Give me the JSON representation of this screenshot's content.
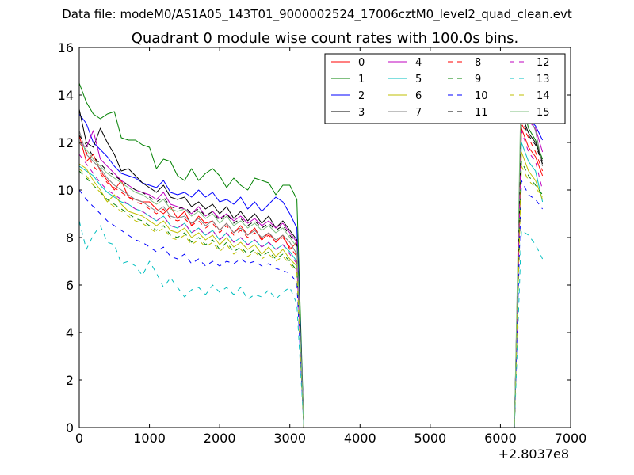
{
  "suptitle": "Data file: modeM0/AS1A05_143T01_9000002524_17006cztM0_level2_quad_clean.evt",
  "chart_data": {
    "type": "line",
    "title": "Quadrant 0 module wise count rates with 100.0s bins.",
    "xlabel": "",
    "ylabel": "",
    "x_offset_label": "+2.8037e8",
    "xlim": [
      0,
      7000
    ],
    "ylim": [
      0,
      16
    ],
    "xticks": [
      "0",
      "1000",
      "2000",
      "3000",
      "4000",
      "5000",
      "6000",
      "7000"
    ],
    "yticks": [
      "0",
      "2",
      "4",
      "6",
      "8",
      "10",
      "12",
      "14",
      "16"
    ],
    "grid": false,
    "legend": {
      "position": "top-right",
      "columns": 4
    },
    "x": [
      0,
      100,
      200,
      300,
      400,
      500,
      600,
      700,
      800,
      900,
      1000,
      1100,
      1200,
      1300,
      1400,
      1500,
      1600,
      1700,
      1800,
      1900,
      2000,
      2100,
      2200,
      2300,
      2400,
      2500,
      2600,
      2700,
      2800,
      2900,
      3000,
      3100,
      3200,
      3300,
      3400,
      3500,
      3600,
      3700,
      3800,
      3900,
      4000,
      4100,
      4200,
      4300,
      4400,
      4500,
      4600,
      4700,
      4800,
      4900,
      5000,
      5100,
      5200,
      5300,
      5400,
      5500,
      5600,
      5700,
      5800,
      5900,
      6000,
      6100,
      6200,
      6300,
      6400,
      6500,
      6600
    ],
    "series": [
      {
        "name": "0",
        "color": "#ff0000",
        "dash": false,
        "values": [
          12.3,
          11.2,
          11.5,
          10.8,
          10.4,
          10.0,
          10.4,
          9.7,
          9.6,
          9.5,
          9.5,
          9.2,
          9.0,
          9.3,
          8.8,
          9.1,
          8.5,
          8.9,
          8.6,
          8.7,
          8.3,
          8.6,
          8.2,
          8.5,
          8.1,
          8.4,
          7.9,
          8.2,
          7.8,
          8.1,
          7.5,
          7.8,
          0,
          0,
          0,
          0,
          0,
          0,
          0,
          0,
          0,
          0,
          0,
          0,
          0,
          0,
          0,
          0,
          0,
          0,
          0,
          0,
          0,
          0,
          0,
          0,
          0,
          0,
          0,
          0,
          0,
          0,
          0,
          12.6,
          11.8,
          11.4,
          10.6
        ]
      },
      {
        "name": "1",
        "color": "#008000",
        "dash": false,
        "values": [
          14.5,
          13.7,
          13.2,
          13.0,
          13.2,
          13.3,
          12.2,
          12.1,
          12.1,
          11.9,
          11.8,
          10.9,
          11.3,
          11.2,
          10.6,
          10.4,
          10.9,
          10.4,
          10.7,
          10.9,
          10.6,
          10.1,
          10.5,
          10.2,
          10.0,
          10.5,
          10.4,
          10.3,
          9.8,
          10.2,
          10.2,
          9.6,
          0,
          0,
          0,
          0,
          0,
          0,
          0,
          0,
          0,
          0,
          0,
          0,
          0,
          0,
          0,
          0,
          0,
          0,
          0,
          0,
          0,
          0,
          0,
          0,
          0,
          0,
          0,
          0,
          0,
          0,
          0,
          13.8,
          12.6,
          12.1,
          11.3
        ]
      },
      {
        "name": "2",
        "color": "#0000ff",
        "dash": false,
        "values": [
          13.2,
          12.8,
          12.0,
          11.7,
          11.4,
          11.0,
          10.7,
          10.6,
          10.5,
          10.3,
          10.2,
          10.1,
          10.4,
          9.9,
          9.8,
          9.9,
          9.7,
          10.0,
          9.7,
          9.9,
          9.5,
          9.6,
          9.4,
          9.7,
          9.2,
          9.5,
          9.1,
          9.4,
          9.7,
          9.5,
          9.0,
          8.4,
          0,
          0,
          0,
          0,
          0,
          0,
          0,
          0,
          0,
          0,
          0,
          0,
          0,
          0,
          0,
          0,
          0,
          0,
          0,
          0,
          0,
          0,
          0,
          0,
          0,
          0,
          0,
          0,
          0,
          0,
          0,
          13.5,
          13.0,
          12.7,
          12.1
        ]
      },
      {
        "name": "3",
        "color": "#000000",
        "dash": false,
        "values": [
          13.4,
          12.0,
          11.8,
          12.6,
          12.0,
          11.5,
          10.8,
          10.9,
          10.6,
          10.3,
          10.1,
          9.9,
          10.2,
          9.7,
          9.6,
          9.7,
          9.3,
          9.5,
          9.2,
          9.4,
          9.0,
          9.3,
          8.8,
          9.1,
          8.7,
          9.0,
          8.6,
          8.9,
          8.4,
          8.7,
          8.3,
          7.9,
          0,
          0,
          0,
          0,
          0,
          0,
          0,
          0,
          0,
          0,
          0,
          0,
          0,
          0,
          0,
          0,
          0,
          0,
          0,
          0,
          0,
          0,
          0,
          0,
          0,
          0,
          0,
          0,
          0,
          0,
          0,
          13.2,
          12.4,
          12.0,
          11.2
        ]
      },
      {
        "name": "4",
        "color": "#bf00bf",
        "dash": false,
        "values": [
          12.0,
          11.8,
          12.5,
          11.3,
          11.0,
          10.7,
          10.4,
          10.2,
          10.0,
          9.9,
          9.8,
          9.6,
          9.9,
          9.4,
          9.3,
          9.2,
          9.0,
          9.3,
          8.9,
          9.1,
          8.8,
          9.0,
          8.7,
          8.9,
          8.6,
          8.8,
          8.5,
          8.7,
          8.4,
          8.6,
          8.2,
          7.8,
          0,
          0,
          0,
          0,
          0,
          0,
          0,
          0,
          0,
          0,
          0,
          0,
          0,
          0,
          0,
          0,
          0,
          0,
          0,
          0,
          0,
          0,
          0,
          0,
          0,
          0,
          0,
          0,
          0,
          0,
          0,
          13.9,
          12.9,
          12.6,
          11.6
        ]
      },
      {
        "name": "5",
        "color": "#00bfbf",
        "dash": false,
        "values": [
          11.0,
          10.8,
          10.6,
          10.2,
          9.9,
          9.7,
          9.5,
          9.4,
          9.2,
          9.1,
          8.9,
          8.7,
          8.9,
          8.5,
          8.4,
          8.6,
          8.2,
          8.4,
          8.1,
          8.3,
          7.9,
          8.2,
          7.8,
          8.0,
          7.7,
          7.9,
          7.6,
          7.8,
          7.5,
          7.7,
          7.4,
          7.0,
          0,
          0,
          0,
          0,
          0,
          0,
          0,
          0,
          0,
          0,
          0,
          0,
          0,
          0,
          0,
          0,
          0,
          0,
          0,
          0,
          0,
          0,
          0,
          0,
          0,
          0,
          0,
          0,
          0,
          0,
          0,
          12.0,
          11.2,
          10.8,
          9.5
        ]
      },
      {
        "name": "6",
        "color": "#bfbf00",
        "dash": false,
        "values": [
          11.1,
          10.9,
          10.4,
          10.0,
          9.5,
          9.8,
          9.4,
          9.1,
          9.0,
          8.9,
          8.7,
          8.5,
          8.7,
          8.3,
          8.2,
          8.4,
          8.0,
          8.2,
          7.9,
          8.1,
          7.7,
          8.0,
          7.6,
          7.8,
          7.5,
          7.7,
          7.3,
          7.6,
          7.2,
          7.5,
          7.1,
          6.8,
          0,
          0,
          0,
          0,
          0,
          0,
          0,
          0,
          0,
          0,
          0,
          0,
          0,
          0,
          0,
          0,
          0,
          0,
          0,
          0,
          0,
          0,
          0,
          0,
          0,
          0,
          0,
          0,
          0,
          0,
          0,
          11.6,
          10.8,
          10.4,
          9.6
        ]
      },
      {
        "name": "7",
        "color": "#808080",
        "dash": false,
        "values": [
          12.5,
          11.5,
          11.2,
          10.9,
          10.5,
          10.2,
          10.0,
          9.8,
          9.6,
          9.5,
          9.3,
          9.1,
          9.3,
          8.9,
          8.8,
          8.9,
          8.6,
          8.8,
          8.5,
          8.7,
          8.3,
          8.6,
          8.2,
          8.4,
          8.1,
          8.3,
          8.0,
          8.2,
          7.9,
          8.1,
          7.8,
          7.3,
          0,
          0,
          0,
          0,
          0,
          0,
          0,
          0,
          0,
          0,
          0,
          0,
          0,
          0,
          0,
          0,
          0,
          0,
          0,
          0,
          0,
          0,
          0,
          0,
          0,
          0,
          0,
          0,
          0,
          0,
          0,
          13.7,
          13.2,
          12.5,
          11.0
        ]
      },
      {
        "name": "8",
        "color": "#ff0000",
        "dash": true,
        "values": [
          12.0,
          11.6,
          11.0,
          10.7,
          10.3,
          10.1,
          9.9,
          9.7,
          9.5,
          9.4,
          9.2,
          9.0,
          9.2,
          8.8,
          8.7,
          8.8,
          8.5,
          8.7,
          8.4,
          8.6,
          8.2,
          8.5,
          8.1,
          8.3,
          8.0,
          8.2,
          7.9,
          8.1,
          7.8,
          8.0,
          7.6,
          7.2,
          0,
          0,
          0,
          0,
          0,
          0,
          0,
          0,
          0,
          0,
          0,
          0,
          0,
          0,
          0,
          0,
          0,
          0,
          0,
          0,
          0,
          0,
          0,
          0,
          0,
          0,
          0,
          0,
          0,
          0,
          0,
          12.8,
          12.2,
          11.6,
          10.8
        ]
      },
      {
        "name": "9",
        "color": "#008000",
        "dash": true,
        "values": [
          10.8,
          10.5,
          10.2,
          9.9,
          9.6,
          9.4,
          9.2,
          9.0,
          8.8,
          8.7,
          8.5,
          8.3,
          8.5,
          8.1,
          8.0,
          8.2,
          7.8,
          8.0,
          7.7,
          7.9,
          7.5,
          7.8,
          7.4,
          7.6,
          7.3,
          7.5,
          7.2,
          7.4,
          7.1,
          7.3,
          7.0,
          6.6,
          0,
          0,
          0,
          0,
          0,
          0,
          0,
          0,
          0,
          0,
          0,
          0,
          0,
          0,
          0,
          0,
          0,
          0,
          0,
          0,
          0,
          0,
          0,
          0,
          0,
          0,
          0,
          0,
          0,
          0,
          0,
          11.2,
          10.6,
          10.2,
          9.8
        ]
      },
      {
        "name": "10",
        "color": "#0000ff",
        "dash": true,
        "values": [
          10.0,
          9.6,
          9.3,
          9.0,
          8.7,
          8.5,
          8.3,
          8.1,
          7.9,
          7.8,
          7.6,
          7.4,
          7.6,
          7.2,
          7.1,
          7.3,
          6.9,
          7.1,
          6.8,
          7.0,
          6.8,
          7.0,
          6.9,
          7.1,
          6.9,
          7.0,
          6.8,
          6.9,
          6.7,
          6.6,
          6.5,
          6.1,
          0,
          0,
          0,
          0,
          0,
          0,
          0,
          0,
          0,
          0,
          0,
          0,
          0,
          0,
          0,
          0,
          0,
          0,
          0,
          0,
          0,
          0,
          0,
          0,
          0,
          0,
          0,
          0,
          0,
          0,
          0,
          10.4,
          9.8,
          9.6,
          9.2
        ]
      },
      {
        "name": "11",
        "color": "#000000",
        "dash": true,
        "values": [
          12.3,
          11.9,
          11.4,
          11.1,
          10.8,
          10.6,
          10.4,
          10.2,
          10.0,
          9.9,
          9.7,
          9.5,
          9.7,
          9.3,
          9.2,
          9.3,
          9.0,
          9.2,
          8.9,
          9.1,
          8.7,
          9.0,
          8.6,
          8.8,
          8.5,
          8.7,
          8.4,
          8.6,
          8.3,
          8.5,
          8.1,
          7.7,
          0,
          0,
          0,
          0,
          0,
          0,
          0,
          0,
          0,
          0,
          0,
          0,
          0,
          0,
          0,
          0,
          0,
          0,
          0,
          0,
          0,
          0,
          0,
          0,
          0,
          0,
          0,
          0,
          0,
          0,
          0,
          13.0,
          12.3,
          11.9,
          11.1
        ]
      },
      {
        "name": "12",
        "color": "#bf00bf",
        "dash": true,
        "values": [
          11.5,
          11.1,
          10.7,
          10.3,
          10.0,
          9.8,
          9.6,
          9.4,
          9.2,
          9.1,
          8.9,
          8.7,
          8.9,
          8.5,
          8.4,
          8.6,
          8.2,
          8.4,
          8.1,
          8.3,
          7.9,
          8.2,
          7.8,
          8.0,
          7.7,
          7.9,
          7.6,
          7.8,
          7.5,
          7.7,
          7.3,
          6.9,
          0,
          0,
          0,
          0,
          0,
          0,
          0,
          0,
          0,
          0,
          0,
          0,
          0,
          0,
          0,
          0,
          0,
          0,
          0,
          0,
          0,
          0,
          0,
          0,
          0,
          0,
          0,
          0,
          0,
          0,
          0,
          12.5,
          11.6,
          11.2,
          10.0
        ]
      },
      {
        "name": "13",
        "color": "#00bfbf",
        "dash": true,
        "values": [
          8.7,
          7.5,
          8.1,
          8.5,
          7.8,
          7.7,
          6.9,
          7.0,
          6.8,
          6.4,
          7.0,
          6.5,
          5.9,
          6.3,
          5.9,
          5.5,
          5.8,
          5.9,
          5.6,
          6.0,
          5.7,
          5.9,
          5.6,
          5.9,
          5.4,
          5.6,
          5.5,
          5.8,
          5.4,
          5.7,
          5.9,
          5.2,
          0,
          0,
          0,
          0,
          0,
          0,
          0,
          0,
          0,
          0,
          0,
          0,
          0,
          0,
          0,
          0,
          0,
          0,
          0,
          0,
          0,
          0,
          0,
          0,
          0,
          0,
          0,
          0,
          0,
          0,
          0,
          8.3,
          8.1,
          7.7,
          7.1
        ]
      },
      {
        "name": "14",
        "color": "#bfbf00",
        "dash": true,
        "values": [
          10.9,
          10.6,
          10.2,
          9.9,
          9.5,
          9.3,
          9.1,
          8.9,
          8.7,
          8.6,
          8.4,
          8.2,
          8.4,
          8.0,
          7.9,
          8.1,
          7.7,
          7.9,
          7.6,
          7.8,
          7.4,
          7.7,
          7.3,
          7.5,
          7.2,
          7.4,
          7.1,
          7.3,
          7.0,
          7.2,
          6.9,
          6.5,
          0,
          0,
          0,
          0,
          0,
          0,
          0,
          0,
          0,
          0,
          0,
          0,
          0,
          0,
          0,
          0,
          0,
          0,
          0,
          0,
          0,
          0,
          0,
          0,
          0,
          0,
          0,
          0,
          0,
          0,
          0,
          11.0,
          10.4,
          10.1,
          9.7
        ]
      },
      {
        "name": "15",
        "color": "#7fbf7f",
        "dash": false,
        "values": [
          12.0,
          11.7,
          11.3,
          11.0,
          10.7,
          10.5,
          10.3,
          10.1,
          9.9,
          9.8,
          9.6,
          9.4,
          9.6,
          9.2,
          9.1,
          9.2,
          8.9,
          9.1,
          8.8,
          9.0,
          8.6,
          8.9,
          8.5,
          8.7,
          8.4,
          8.6,
          8.3,
          8.5,
          8.2,
          8.4,
          8.0,
          7.6,
          0,
          0,
          0,
          0,
          0,
          0,
          0,
          0,
          0,
          0,
          0,
          0,
          0,
          0,
          0,
          0,
          0,
          0,
          0,
          0,
          0,
          0,
          0,
          0,
          0,
          0,
          0,
          0,
          0,
          0,
          0,
          15.1,
          14.0,
          13.5,
          12.9
        ]
      }
    ]
  }
}
